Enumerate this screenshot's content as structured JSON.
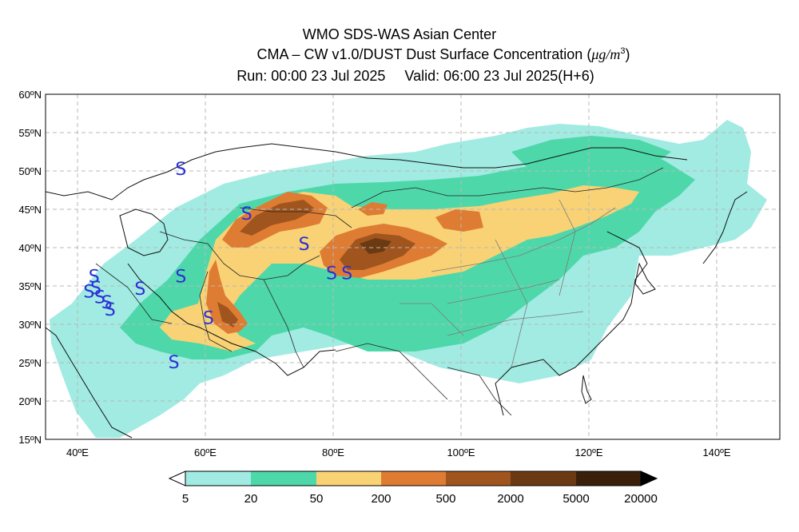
{
  "header": {
    "line1": "WMO SDS-WAS Asian Center",
    "line2_prefix": "CMA – CW v1.0/DUST Dust Surface Concentration (",
    "line2_unit": "μg/m",
    "line2_sup": "3",
    "line2_suffix": ")",
    "run": "Run: 00:00 23 Jul 2025",
    "valid": "Valid: 06:00 23 Jul 2025(H+6)"
  },
  "map": {
    "lon_range": [
      35,
      150
    ],
    "lat_range": [
      15,
      60
    ],
    "lon_ticks": [
      {
        "value": 40,
        "label": "40ºE"
      },
      {
        "value": 60,
        "label": "60ºE"
      },
      {
        "value": 80,
        "label": "80ºE"
      },
      {
        "value": 100,
        "label": "100ºE"
      },
      {
        "value": 120,
        "label": "120ºE"
      },
      {
        "value": 140,
        "label": "140ºE"
      }
    ],
    "lat_ticks": [
      {
        "value": 15,
        "label": "15ºN"
      },
      {
        "value": 20,
        "label": "20ºN"
      },
      {
        "value": 25,
        "label": "25ºN"
      },
      {
        "value": 30,
        "label": "30ºN"
      },
      {
        "value": 35,
        "label": "35ºN"
      },
      {
        "value": 40,
        "label": "40ºN"
      },
      {
        "value": 45,
        "label": "45ºN"
      },
      {
        "value": 50,
        "label": "50ºN"
      },
      {
        "value": 55,
        "label": "55ºN"
      },
      {
        "value": 60,
        "label": "60ºN"
      }
    ],
    "grid": true,
    "dust_storm_symbol": "S",
    "dust_storm_color": "#2b2fd8",
    "dust_storm_markers": [
      {
        "lon": 56.2,
        "lat": 50.3
      },
      {
        "lon": 66.5,
        "lat": 44.5
      },
      {
        "lon": 75.5,
        "lat": 40.5
      },
      {
        "lon": 79.8,
        "lat": 36.7
      },
      {
        "lon": 82.2,
        "lat": 36.7
      },
      {
        "lon": 56.2,
        "lat": 36.3
      },
      {
        "lon": 42.6,
        "lat": 36.3
      },
      {
        "lon": 42.9,
        "lat": 34.8
      },
      {
        "lon": 41.8,
        "lat": 34.3
      },
      {
        "lon": 43.5,
        "lat": 33.6
      },
      {
        "lon": 44.6,
        "lat": 32.9
      },
      {
        "lon": 45.1,
        "lat": 32.0
      },
      {
        "lon": 49.8,
        "lat": 34.7
      },
      {
        "lon": 60.5,
        "lat": 30.9
      },
      {
        "lon": 55.1,
        "lat": 25.1
      }
    ]
  },
  "legend": {
    "labels": [
      "5",
      "20",
      "50",
      "200",
      "500",
      "2000",
      "5000",
      "20000"
    ],
    "colors": [
      "#a1ebe2",
      "#4ed8aa",
      "#f8d275",
      "#de7c34",
      "#a0551e",
      "#6b3a12",
      "#3a1f0b"
    ]
  }
}
